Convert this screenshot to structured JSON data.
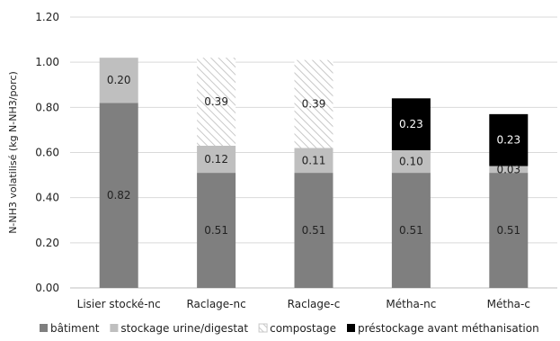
{
  "chart_data": {
    "type": "bar",
    "stacked": true,
    "ylabel": "N-NH3 volatilisé (kg N-NH3/porc)",
    "ylim": [
      0,
      1.2
    ],
    "yticks": [
      "0.00",
      "0.20",
      "0.40",
      "0.60",
      "0.80",
      "1.00",
      "1.20"
    ],
    "grid": true,
    "legend_position": "bottom",
    "categories": [
      "Lisier stocké-nc",
      "Raclage-nc",
      "Raclage-c",
      "Métha-nc",
      "Métha-c"
    ],
    "series": [
      {
        "name": "bâtiment",
        "values": [
          0.82,
          0.51,
          0.51,
          0.51,
          0.51
        ],
        "labels": [
          "0.82",
          "0.51",
          "0.51",
          "0.51",
          "0.51"
        ],
        "color": "#7f7f7f",
        "pattern": "solid",
        "label_color": "#222222"
      },
      {
        "name": "stockage urine/digestat",
        "values": [
          0.2,
          0.12,
          0.11,
          0.1,
          0.03
        ],
        "labels": [
          "0.20",
          "0.12",
          "0.11",
          "0.10",
          "0.03"
        ],
        "color": "#bfbfbf",
        "pattern": "solid",
        "label_color": "#222222"
      },
      {
        "name": "compostage",
        "values": [
          0,
          0.39,
          0.39,
          0,
          0
        ],
        "labels": [
          "",
          "0.39",
          "0.39",
          "",
          ""
        ],
        "color": "#d0d0d0",
        "pattern": "hatch",
        "label_color": "#222222"
      },
      {
        "name": "préstockage avant méthanisation",
        "values": [
          0,
          0,
          0,
          0.23,
          0.23
        ],
        "labels": [
          "",
          "",
          "",
          "0.23",
          "0.23"
        ],
        "color": "#000000",
        "pattern": "solid",
        "label_color": "#ffffff"
      }
    ]
  }
}
